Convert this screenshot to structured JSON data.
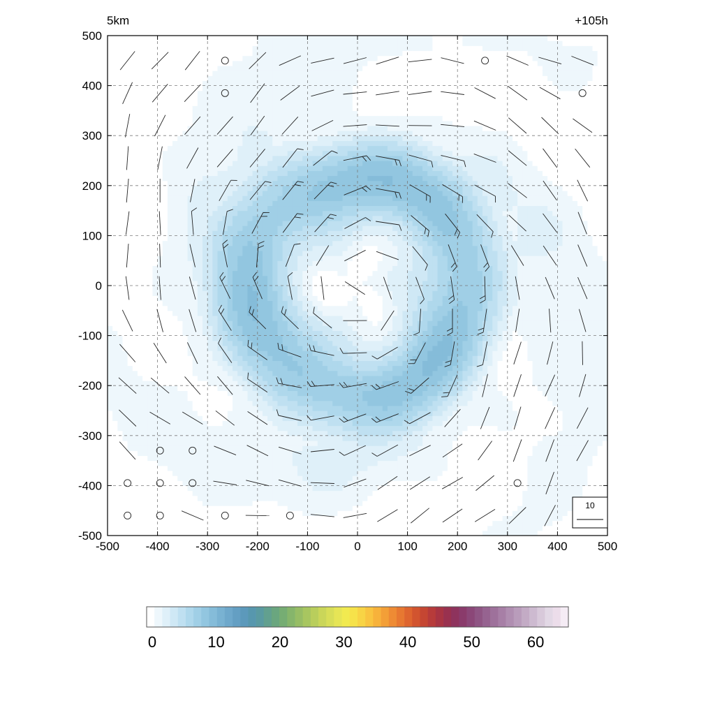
{
  "header": {
    "level": "5km",
    "time": "+105h"
  },
  "chart_data": {
    "type": "heatmap",
    "title": "",
    "xlabel": "",
    "ylabel": "",
    "xlim": [
      -500,
      500
    ],
    "ylim": [
      -500,
      500
    ],
    "x_ticks": [
      "-500",
      "-400",
      "-300",
      "-200",
      "-100",
      "0",
      "100",
      "200",
      "300",
      "400",
      "500"
    ],
    "y_ticks": [
      "500",
      "400",
      "300",
      "200",
      "100",
      "0",
      "-100",
      "-200",
      "-300",
      "-400",
      "-500"
    ],
    "grid": true,
    "field": {
      "kind": "annular wind-speed ring",
      "center": [
        0,
        0
      ],
      "ring_radius": 215,
      "ring_peak": 11,
      "eye_value": 0.5,
      "outer_value": 1
    },
    "barbs": {
      "spacing": 65,
      "reference_label": "10",
      "calm_points": [
        [
          -265,
          450
        ],
        [
          255,
          450
        ],
        [
          -265,
          385
        ],
        [
          450,
          385
        ],
        [
          -395,
          -330
        ],
        [
          -330,
          -330
        ],
        [
          -460,
          -395
        ],
        [
          -395,
          -395
        ],
        [
          -330,
          -395
        ],
        [
          320,
          -395
        ],
        [
          -460,
          -460
        ],
        [
          -395,
          -460
        ],
        [
          -265,
          -460
        ],
        [
          -135,
          -460
        ]
      ]
    },
    "colorbar": {
      "ticks": [
        "0",
        "10",
        "20",
        "30",
        "40",
        "50",
        "60"
      ],
      "min": 0,
      "max": 66,
      "step": 1.5,
      "colors": [
        "#ffffff",
        "#eef7fc",
        "#dff0f9",
        "#cfe8f5",
        "#bfe0f1",
        "#afd8ec",
        "#a0cfe6",
        "#92c6e0",
        "#85bcd9",
        "#79b2d2",
        "#6ea8cb",
        "#649fc3",
        "#5c99bb",
        "#5797ae",
        "#5a9aa1",
        "#62a08f",
        "#6aa67f",
        "#76ad73",
        "#86b56b",
        "#97bd65",
        "#a8c660",
        "#b9ce5c",
        "#cad659",
        "#d8de58",
        "#e6e556",
        "#f1ea50",
        "#f6e24a",
        "#f8d445",
        "#f9c440",
        "#f7b23b",
        "#f39f37",
        "#ee8b34",
        "#e77831",
        "#de652f",
        "#d2542f",
        "#c54632",
        "#b73b3a",
        "#a83443",
        "#99314f",
        "#8e335d",
        "#8a3b6b",
        "#8b4778",
        "#8f5584",
        "#966390",
        "#9e719b",
        "#a77fa6",
        "#b08eb1",
        "#b99cbb",
        "#c3abc5",
        "#cdbad0",
        "#d8c9da",
        "#e2d8e5",
        "#ecddea",
        "#f5ecf5"
      ]
    }
  }
}
